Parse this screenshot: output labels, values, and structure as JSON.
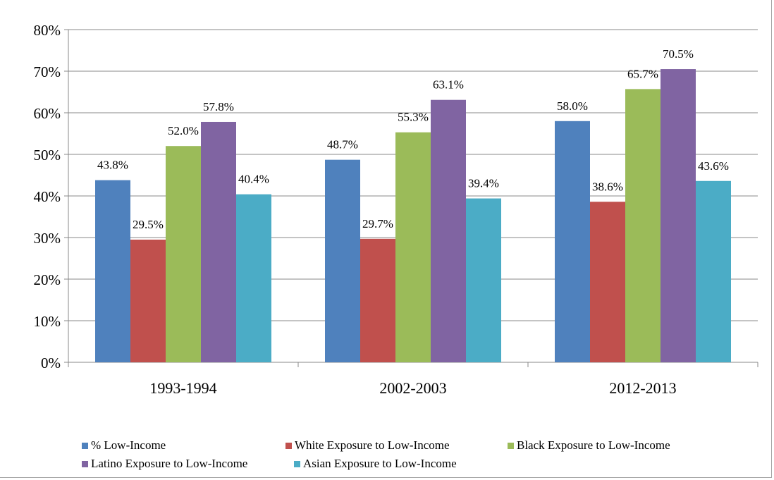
{
  "chart_data": {
    "type": "bar",
    "categories": [
      "1993-1994",
      "2002-2003",
      "2012-2013"
    ],
    "ylim": [
      0,
      80
    ],
    "y_ticks": [
      "0%",
      "10%",
      "20%",
      "30%",
      "40%",
      "50%",
      "60%",
      "70%",
      "80%"
    ],
    "grid": true,
    "legend_position": "bottom",
    "series": [
      {
        "name": "% Low-Income",
        "color": "#4f81bd",
        "values": [
          43.8,
          48.7,
          58.0
        ],
        "labels": [
          "43.8%",
          "48.7%",
          "58.0%"
        ]
      },
      {
        "name": "White Exposure to Low-Income",
        "color": "#c0504d",
        "values": [
          29.5,
          29.7,
          38.6
        ],
        "labels": [
          "29.5%",
          "29.7%",
          "38.6%"
        ]
      },
      {
        "name": "Black Exposure to Low-Income",
        "color": "#9bbb59",
        "values": [
          52.0,
          55.3,
          65.7
        ],
        "labels": [
          "52.0%",
          "55.3%",
          "65.7%"
        ]
      },
      {
        "name": "Latino Exposure to Low-Income",
        "color": "#8064a2",
        "values": [
          57.8,
          63.1,
          70.5
        ],
        "labels": [
          "57.8%",
          "63.1%",
          "70.5%"
        ]
      },
      {
        "name": "Asian Exposure to Low-Income",
        "color": "#4bacc6",
        "values": [
          40.4,
          39.4,
          43.6
        ],
        "labels": [
          "40.4%",
          "39.4%",
          "43.6%"
        ]
      }
    ]
  }
}
